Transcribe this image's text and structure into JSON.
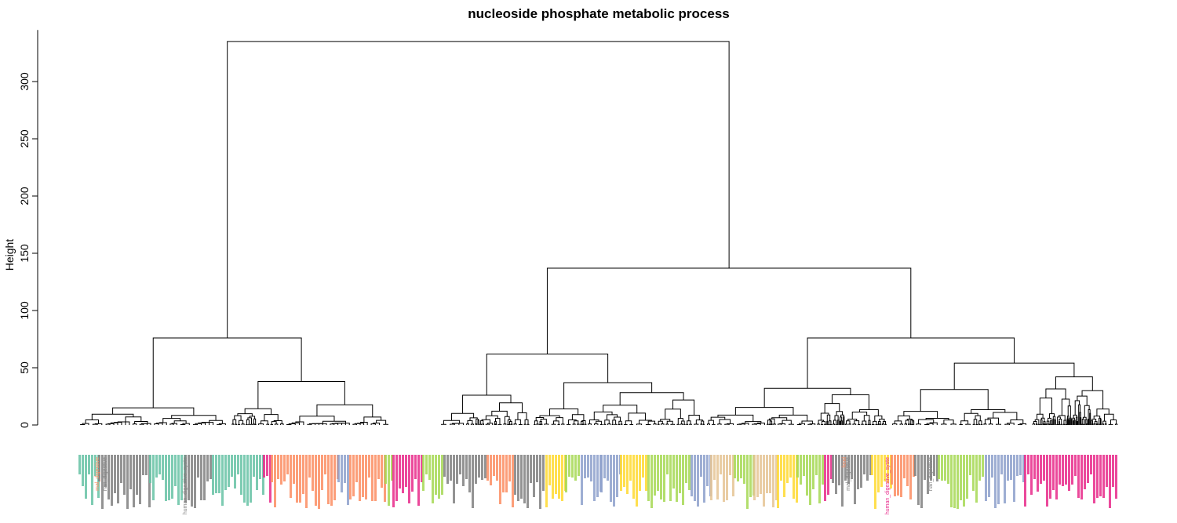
{
  "chart_data": {
    "type": "dendrogram",
    "title": "nucleoside phosphate metabolic process",
    "ylabel": "Height",
    "xlabel": "",
    "ylim": [
      0,
      345
    ],
    "yticks": [
      0,
      50,
      100,
      150,
      200,
      250,
      300
    ],
    "root_height": 335,
    "merges": [
      {
        "name": "root",
        "height": 335,
        "children": [
          "left-cluster",
          "right-cluster"
        ]
      },
      {
        "name": "left-cluster",
        "height": 76,
        "children": [
          "left-a",
          "left-b"
        ]
      },
      {
        "name": "right-cluster",
        "height": 137,
        "children": [
          "right-a",
          "right-b"
        ]
      },
      {
        "name": "left-a",
        "height": 15
      },
      {
        "name": "left-b",
        "height": 38
      },
      {
        "name": "right-a",
        "height": 62,
        "children": [
          "right-a1",
          "right-a2"
        ]
      },
      {
        "name": "right-a1",
        "height": 26
      },
      {
        "name": "right-a2",
        "height": 37
      },
      {
        "name": "right-b",
        "height": 76,
        "children": [
          "right-b1",
          "right-b2"
        ]
      },
      {
        "name": "right-b1",
        "height": 32
      },
      {
        "name": "right-b2",
        "height": 54,
        "children": [
          "right-b2a",
          "right-b2b"
        ]
      },
      {
        "name": "right-b2a",
        "height": 31
      },
      {
        "name": "right-b2b",
        "height": 42
      }
    ],
    "visible_leaf_labels": [
      "mal_digestive",
      "nan_digestive",
      "human_digestive_syste",
      "food"
    ],
    "leaf_group_colors": [
      "#66c2a5",
      "#808080",
      "#fc8d62",
      "#8da0cb",
      "#e7298a",
      "#a6d854",
      "#ffd92f",
      "#e5c494",
      "#b3b3b3"
    ]
  }
}
